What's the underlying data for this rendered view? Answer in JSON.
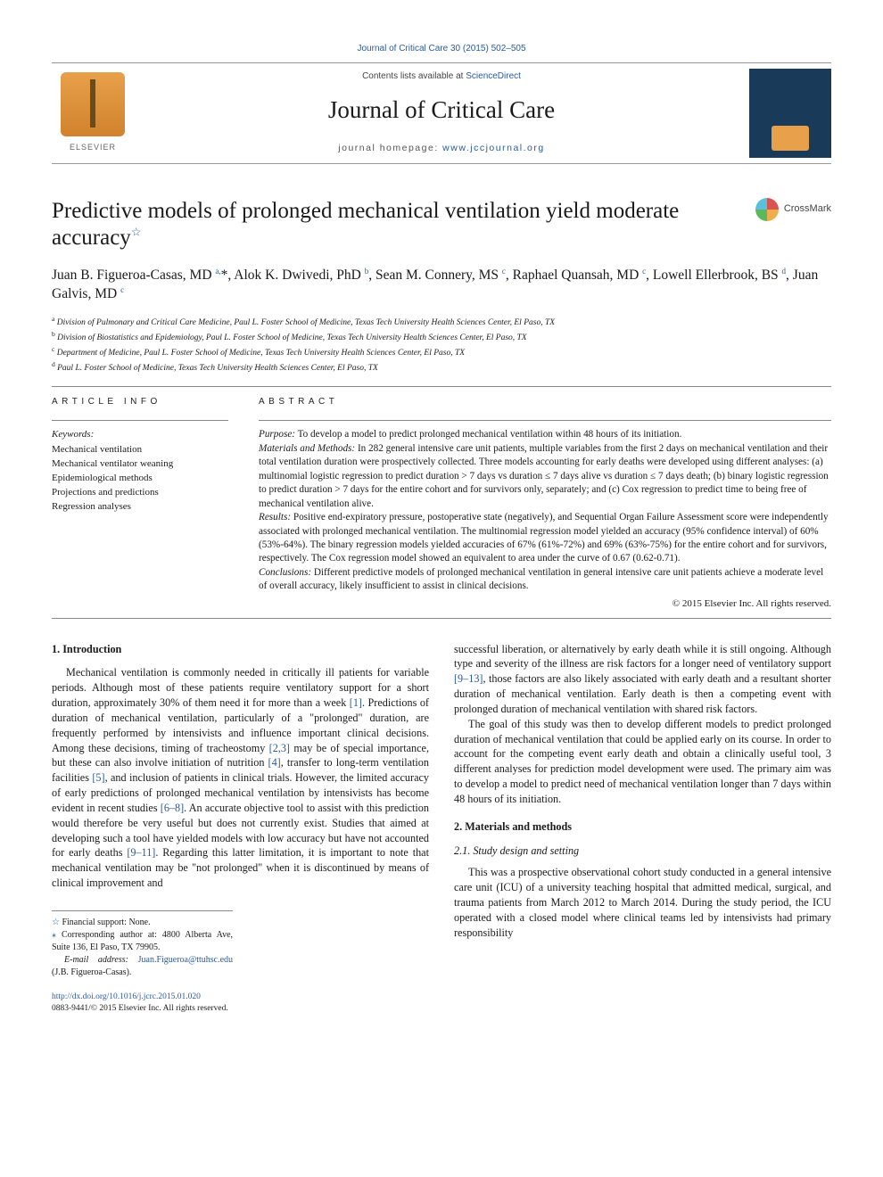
{
  "citation_top": "Journal of Critical Care 30 (2015) 502–505",
  "header": {
    "contents_prefix": "Contents lists available at ",
    "contents_link": "ScienceDirect",
    "journal_title": "Journal of Critical Care",
    "homepage_prefix": "journal homepage: ",
    "homepage_url": "www.jccjournal.org",
    "elsevier_label": "ELSEVIER"
  },
  "crossmark_label": "CrossMark",
  "article": {
    "title": "Predictive models of prolonged mechanical ventilation yield moderate accuracy",
    "title_note_marker": "☆",
    "authors_html": "Juan B. Figueroa-Casas, MD <sup>a,</sup>*, Alok K. Dwivedi, PhD <sup>b</sup>, Sean M. Connery, MS <sup>c</sup>, Raphael Quansah, MD <sup>c</sup>, Lowell Ellerbrook, BS <sup>d</sup>, Juan Galvis, MD <sup>c</sup>",
    "affiliations": [
      {
        "mark": "a",
        "text": "Division of Pulmonary and Critical Care Medicine, Paul L. Foster School of Medicine, Texas Tech University Health Sciences Center, El Paso, TX"
      },
      {
        "mark": "b",
        "text": "Division of Biostatistics and Epidemiology, Paul L. Foster School of Medicine, Texas Tech University Health Sciences Center, El Paso, TX"
      },
      {
        "mark": "c",
        "text": "Department of Medicine, Paul L. Foster School of Medicine, Texas Tech University Health Sciences Center, El Paso, TX"
      },
      {
        "mark": "d",
        "text": "Paul L. Foster School of Medicine, Texas Tech University Health Sciences Center, El Paso, TX"
      }
    ]
  },
  "article_info": {
    "head": "ARTICLE INFO",
    "keywords_label": "Keywords:",
    "keywords": [
      "Mechanical ventilation",
      "Mechanical ventilator weaning",
      "Epidemiological methods",
      "Projections and predictions",
      "Regression analyses"
    ]
  },
  "abstract": {
    "head": "ABSTRACT",
    "purpose_label": "Purpose:",
    "purpose": " To develop a model to predict prolonged mechanical ventilation within 48 hours of its initiation.",
    "methods_label": "Materials and Methods:",
    "methods": " In 282 general intensive care unit patients, multiple variables from the first 2 days on mechanical ventilation and their total ventilation duration were prospectively collected. Three models accounting for early deaths were developed using different analyses: (a) multinomial logistic regression to predict duration > 7 days vs duration ≤ 7 days alive vs duration ≤ 7 days death; (b) binary logistic regression to predict duration > 7 days for the entire cohort and for survivors only, separately; and (c) Cox regression to predict time to being free of mechanical ventilation alive.",
    "results_label": "Results:",
    "results": " Positive end-expiratory pressure, postoperative state (negatively), and Sequential Organ Failure Assessment score were independently associated with prolonged mechanical ventilation. The multinomial regression model yielded an accuracy (95% confidence interval) of 60% (53%-64%). The binary regression models yielded accuracies of 67% (61%-72%) and 69% (63%-75%) for the entire cohort and for survivors, respectively. The Cox regression model showed an equivalent to area under the curve of 0.67 (0.62-0.71).",
    "conclusions_label": "Conclusions:",
    "conclusions": " Different predictive models of prolonged mechanical ventilation in general intensive care unit patients achieve a moderate level of overall accuracy, likely insufficient to assist in clinical decisions.",
    "copyright": "© 2015 Elsevier Inc. All rights reserved."
  },
  "body": {
    "intro_head": "1. Introduction",
    "intro_p1": "Mechanical ventilation is commonly needed in critically ill patients for variable periods. Although most of these patients require ventilatory support for a short duration, approximately 30% of them need it for more than a week [1]. Predictions of duration of mechanical ventilation, particularly of a \"prolonged\" duration, are frequently performed by intensivists and influence important clinical decisions. Among these decisions, timing of tracheostomy [2,3] may be of special importance, but these can also involve initiation of nutrition [4], transfer to long-term ventilation facilities [5], and inclusion of patients in clinical trials. However, the limited accuracy of early predictions of prolonged mechanical ventilation by intensivists has become evident in recent studies [6–8]. An accurate objective tool to assist with this prediction would therefore be very useful but does not currently exist. Studies that aimed at developing such a tool have yielded models with low accuracy but have not accounted for early deaths [9–11]. Regarding this latter limitation, it is important to note that mechanical ventilation may be \"not prolonged\" when it is discontinued by means of clinical improvement and",
    "col2_p1": "successful liberation, or alternatively by early death while it is still ongoing. Although type and severity of the illness are risk factors for a longer need of ventilatory support [9–13], those factors are also likely associated with early death and a resultant shorter duration of mechanical ventilation. Early death is then a competing event with prolonged duration of mechanical ventilation with shared risk factors.",
    "col2_p2": "The goal of this study was then to develop different models to predict prolonged duration of mechanical ventilation that could be applied early on its course. In order to account for the competing event early death and obtain a clinically useful tool, 3 different analyses for prediction model development were used. The primary aim was to develop a model to predict need of mechanical ventilation longer than 7 days within 48 hours of its initiation.",
    "methods_head": "2. Materials and methods",
    "design_head": "2.1. Study design and setting",
    "design_p": "This was a prospective observational cohort study conducted in a general intensive care unit (ICU) of a university teaching hospital that admitted medical, surgical, and trauma patients from March 2012 to March 2014. During the study period, the ICU operated with a closed model where clinical teams led by intensivists had primary responsibility"
  },
  "footnotes": {
    "fn1_marker": "☆",
    "fn1": " Financial support: None.",
    "fn2_marker": "⁎",
    "fn2": " Corresponding author at: 4800 Alberta Ave, Suite 136, El Paso, TX 79905.",
    "email_label": "E-mail address: ",
    "email": "Juan.Figueroa@ttuhsc.edu",
    "email_tail": " (J.B. Figueroa-Casas)."
  },
  "bottom": {
    "doi": "http://dx.doi.org/10.1016/j.jcrc.2015.01.020",
    "issn_line": "0883-9441/© 2015 Elsevier Inc. All rights reserved."
  },
  "colors": {
    "link": "#2b5a9b",
    "text": "#1a1a1a",
    "rule": "#888888",
    "elsevier_bg": "#d1822c",
    "cover_bg": "#1a3a5a"
  },
  "typography": {
    "body_pt": 12.2,
    "title_pt": 25,
    "journal_title_pt": 27,
    "authors_pt": 15.5,
    "abstract_pt": 11.2,
    "affil_pt": 9.5,
    "footnote_pt": 10
  }
}
